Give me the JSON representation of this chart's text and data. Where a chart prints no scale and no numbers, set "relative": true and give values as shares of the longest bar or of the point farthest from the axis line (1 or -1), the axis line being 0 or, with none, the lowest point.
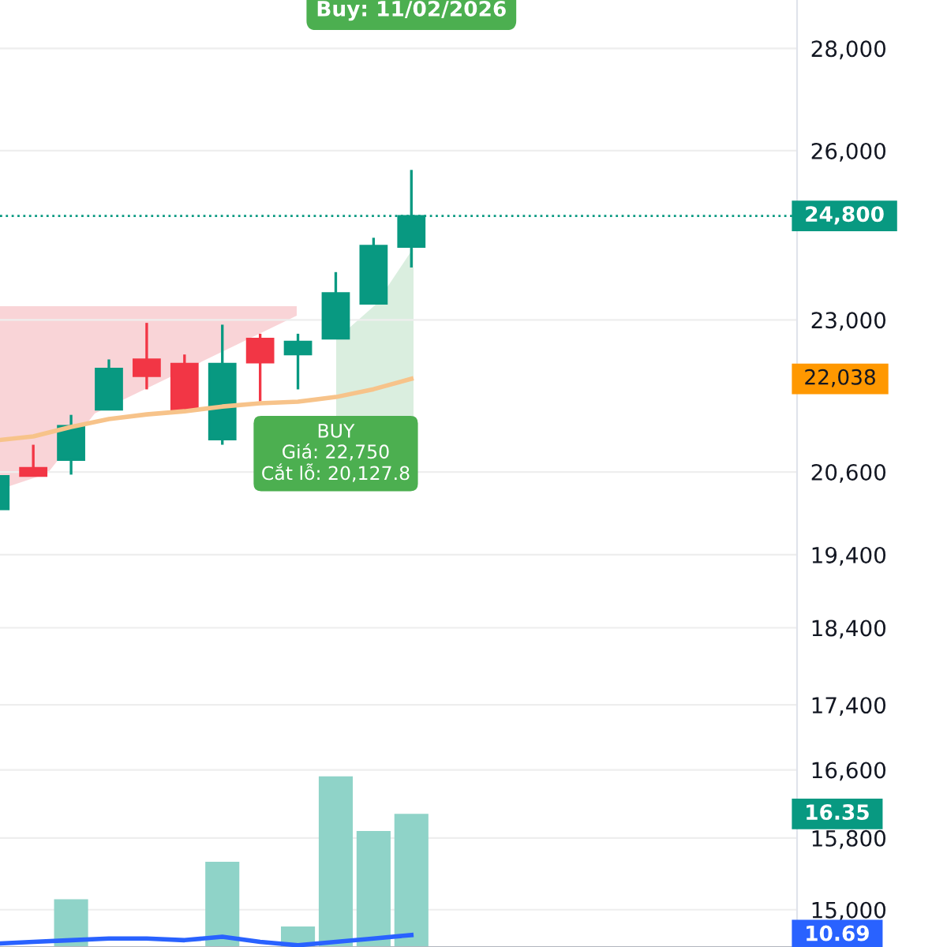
{
  "chart_data": [
    {
      "type": "candlestick",
      "categories": [
        null,
        null,
        null,
        null,
        null,
        null,
        null,
        null,
        null,
        null,
        null,
        null
      ],
      "ohlc": [
        [
          20050,
          20540,
          20050,
          20540
        ],
        [
          20660,
          21010,
          20540,
          20540
        ],
        [
          20780,
          21470,
          20560,
          21300
        ],
        [
          21550,
          22350,
          21550,
          22200
        ],
        [
          22350,
          22950,
          21870,
          22080
        ],
        [
          22280,
          22430,
          21550,
          21550
        ],
        [
          21090,
          22920,
          21010,
          22280
        ],
        [
          22690,
          22770,
          21680,
          22300
        ],
        [
          22430,
          22770,
          21870,
          22640
        ],
        [
          22690,
          23810,
          22690,
          23450
        ],
        [
          23270,
          24410,
          23270,
          24270
        ],
        [
          24250,
          25640,
          23890,
          24800
        ]
      ],
      "colors": [
        "#089981",
        "#f23645",
        "#089981",
        "#089981",
        "#f23645",
        "#f23645",
        "#089981",
        "#f23645",
        "#089981",
        "#089981",
        "#089981",
        "#089981"
      ],
      "series": [
        {
          "type": "line",
          "color": "#f7c38a",
          "values": [
            21075,
            21137,
            21282,
            21404,
            21477,
            21526,
            21600,
            21650,
            21675,
            21749,
            21873,
            22038
          ]
        }
      ],
      "log": "y",
      "ylim": [
        14600,
        29000
      ],
      "yticks": [
        {
          "value": 15000,
          "label": "15,000"
        },
        {
          "value": 15800,
          "label": "15,800"
        },
        {
          "value": 16600,
          "label": "16,600"
        },
        {
          "value": 17400,
          "label": "17,400"
        },
        {
          "value": 18400,
          "label": "18,400"
        },
        {
          "value": 19400,
          "label": "19,400"
        },
        {
          "value": 20600,
          "label": "20,600"
        },
        {
          "value": 23000,
          "label": "23,000"
        },
        {
          "value": 26000,
          "label": "26,000"
        },
        {
          "value": 28000,
          "label": "28,000"
        }
      ],
      "grid": "y",
      "legend": false,
      "marker": "none",
      "ref_lines": [
        {
          "axis": "y",
          "value": 24800,
          "label": "24,800",
          "color": "#089981",
          "line_style": "dotted"
        }
      ],
      "annotations": [
        "Buy: 11/02/2026",
        "BUY\nGiá: 22,750\nCắt lỗ: 20,127.8",
        "22,038"
      ]
    },
    {
      "type": "bar",
      "relative": true,
      "categories": [
        null,
        null,
        null,
        null,
        null,
        null,
        null,
        null,
        null,
        null,
        null,
        null
      ],
      "series": [
        {
          "type": "bar",
          "color": "#8fd3c8",
          "values": [
            null,
            null,
            0.28,
            null,
            null,
            null,
            0.5,
            null,
            0.12,
            1,
            0.68,
            0.78
          ]
        },
        {
          "type": "line",
          "color": "#2962ff",
          "values": [
            0.02,
            0.03,
            0.04,
            0.05,
            0.05,
            0.04,
            0.06,
            0.03,
            0.01,
            0.03,
            0.05,
            0.07
          ]
        }
      ],
      "annotations": [
        "16.35",
        "10.69"
      ]
    }
  ]
}
